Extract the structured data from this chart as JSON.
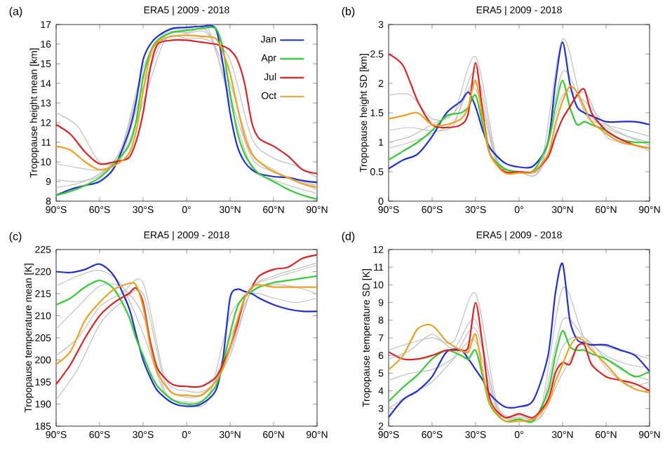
{
  "chart_data": [
    {
      "type": "line",
      "title": "ERA5 | 2009 - 2018",
      "ylabel": "Tropopause height mean [km]",
      "annotations": [
        "(a)"
      ],
      "legend": "top right",
      "x": [
        -90,
        -80,
        -70,
        -60,
        -50,
        -40,
        -35,
        -30,
        -25,
        -20,
        -10,
        0,
        10,
        20,
        25,
        30,
        35,
        40,
        45,
        50,
        60,
        70,
        80,
        90
      ],
      "xlim": [
        -90,
        90
      ],
      "xticks": [
        {
          "value": -90,
          "label": "90°S"
        },
        {
          "value": -60,
          "label": "60°S"
        },
        {
          "value": -30,
          "label": "30°S"
        },
        {
          "value": 0,
          "label": "0°"
        },
        {
          "value": 30,
          "label": "30°N"
        },
        {
          "value": 60,
          "label": "60°N"
        },
        {
          "value": 90,
          "label": "90°N"
        }
      ],
      "ylim": [
        8,
        17
      ],
      "yticks": [
        8,
        9,
        10,
        11,
        12,
        13,
        14,
        15,
        16,
        17
      ],
      "series": [
        {
          "color": "#c0c0c0",
          "x": [
            -90,
            -75,
            -60,
            -45,
            -30,
            -15,
            0,
            15,
            30,
            45,
            60,
            75,
            90
          ],
          "values": [
            12.5,
            11.8,
            10.0,
            10.2,
            13,
            16.2,
            16.3,
            16.2,
            15.2,
            11.2,
            10.2,
            9.8,
            9.2
          ]
        },
        {
          "color": "#c0c0c0",
          "x": [
            -90,
            -75,
            -60,
            -45,
            -30,
            -15,
            0,
            15,
            30,
            45,
            60,
            75,
            90
          ],
          "values": [
            9.9,
            9.7,
            9.6,
            10.3,
            13.8,
            16.4,
            16.55,
            16.5,
            14.0,
            10.5,
            9.6,
            9.0,
            8.6
          ]
        },
        {
          "color": "#c0c0c0",
          "x": [
            -90,
            -75,
            -60,
            -45,
            -30,
            -15,
            0,
            15,
            30,
            45,
            60,
            75,
            90
          ],
          "values": [
            9.1,
            9.0,
            9.3,
            10.7,
            14.8,
            16.6,
            16.75,
            16.8,
            13.0,
            9.7,
            9.1,
            8.7,
            8.4
          ]
        },
        {
          "color": "#c0c0c0",
          "x": [
            -90,
            -75,
            -60,
            -45,
            -30,
            -15,
            0,
            15,
            30,
            45,
            60,
            75,
            90
          ],
          "values": [
            8.7,
            8.9,
            9.4,
            10.6,
            14.5,
            16.5,
            16.6,
            16.6,
            13.3,
            10.2,
            9.5,
            9.1,
            8.8
          ]
        },
        {
          "name": "Jan",
          "color": "#1f2fd0",
          "values": [
            8.3,
            8.6,
            8.8,
            9.0,
            9.7,
            11.5,
            13,
            15.2,
            16.0,
            16.4,
            16.8,
            16.85,
            16.9,
            16.8,
            15.0,
            12.5,
            10.8,
            10.0,
            9.6,
            9.4,
            9.25,
            9.2,
            9.05,
            8.95
          ]
        },
        {
          "name": "Apr",
          "color": "#33cc33",
          "values": [
            8.3,
            8.5,
            8.8,
            9.2,
            9.9,
            10.8,
            12,
            14.3,
            15.6,
            16.2,
            16.6,
            16.7,
            16.8,
            16.8,
            15.8,
            13.5,
            11.5,
            10.4,
            9.8,
            9.4,
            9.0,
            8.6,
            8.3,
            8.1
          ]
        },
        {
          "name": "Jul",
          "color": "#dd2222",
          "values": [
            11.9,
            11.4,
            10.5,
            9.9,
            10.0,
            10.2,
            11.0,
            12.5,
            14.8,
            16.0,
            16.2,
            16.2,
            16.1,
            16.0,
            15.9,
            15.7,
            15.2,
            14.0,
            12.0,
            11.2,
            10.8,
            10.3,
            9.6,
            9.4
          ]
        },
        {
          "name": "Oct",
          "color": "#f0a020",
          "values": [
            10.8,
            10.6,
            10.0,
            9.6,
            9.8,
            10.4,
            11.5,
            13.6,
            15.5,
            16.1,
            16.4,
            16.45,
            16.4,
            16.3,
            15.6,
            14.5,
            12.8,
            11.3,
            10.4,
            10.0,
            9.5,
            9.2,
            8.9,
            8.7
          ]
        }
      ]
    },
    {
      "type": "line",
      "title": "ERA5 | 2009 - 2018",
      "ylabel": "Tropopause height SD [km]",
      "annotations": [
        "(b)"
      ],
      "x": [
        -90,
        -80,
        -70,
        -60,
        -50,
        -40,
        -35,
        -30,
        -25,
        -20,
        -10,
        0,
        10,
        20,
        25,
        30,
        35,
        40,
        45,
        50,
        60,
        70,
        80,
        90
      ],
      "xlim": [
        -90,
        90
      ],
      "xticks": [
        {
          "value": -90,
          "label": "90°S"
        },
        {
          "value": -60,
          "label": "60°S"
        },
        {
          "value": -30,
          "label": "30°S"
        },
        {
          "value": 0,
          "label": "0°"
        },
        {
          "value": 30,
          "label": "30°N"
        },
        {
          "value": 60,
          "label": "60°N"
        },
        {
          "value": 90,
          "label": "90°N"
        }
      ],
      "ylim": [
        0,
        3
      ],
      "yticks": [
        0,
        0.5,
        1,
        1.5,
        2,
        2.5,
        3
      ],
      "series": [
        {
          "color": "#c0c0c0",
          "x": [
            -90,
            -75,
            -60,
            -45,
            -30,
            -15,
            0,
            15,
            30,
            45,
            60,
            75,
            90
          ],
          "values": [
            1.8,
            1.8,
            1.4,
            1.5,
            2.45,
            0.7,
            0.5,
            0.6,
            2.75,
            1.5,
            1.3,
            1.2,
            1.1
          ]
        },
        {
          "color": "#c0c0c0",
          "x": [
            -90,
            -75,
            -60,
            -45,
            -30,
            -15,
            0,
            15,
            30,
            45,
            60,
            75,
            90
          ],
          "values": [
            1.2,
            1.25,
            1.2,
            1.3,
            2.2,
            0.65,
            0.5,
            0.55,
            2.2,
            1.55,
            1.25,
            1.1,
            1.0
          ]
        },
        {
          "color": "#c0c0c0",
          "x": [
            -90,
            -75,
            -60,
            -45,
            -30,
            -15,
            0,
            15,
            30,
            45,
            60,
            75,
            90
          ],
          "values": [
            1.0,
            1.1,
            1.3,
            1.5,
            1.9,
            0.7,
            0.5,
            0.6,
            1.8,
            1.7,
            1.3,
            1.1,
            0.95
          ]
        },
        {
          "color": "#c0c0c0",
          "x": [
            -90,
            -75,
            -60,
            -45,
            -30,
            -15,
            0,
            15,
            30,
            45,
            60,
            75,
            90
          ],
          "values": [
            0.9,
            1.0,
            1.15,
            1.35,
            2.0,
            0.6,
            0.5,
            0.55,
            1.4,
            1.85,
            1.1,
            1.0,
            0.85
          ]
        },
        {
          "color": "#1f2fd0",
          "values": [
            0.55,
            0.7,
            0.8,
            1.1,
            1.5,
            1.7,
            1.85,
            1.6,
            1.2,
            0.9,
            0.65,
            0.58,
            0.6,
            1.0,
            2.0,
            2.7,
            2.0,
            1.6,
            1.5,
            1.45,
            1.35,
            1.35,
            1.35,
            1.3
          ]
        },
        {
          "color": "#33cc33",
          "values": [
            0.7,
            0.85,
            1.0,
            1.2,
            1.45,
            1.5,
            1.6,
            1.8,
            1.3,
            0.8,
            0.55,
            0.5,
            0.52,
            1.0,
            1.6,
            2.05,
            1.6,
            1.3,
            1.35,
            1.3,
            1.2,
            1.05,
            1.0,
            1.0
          ]
        },
        {
          "color": "#dd2222",
          "values": [
            2.5,
            2.3,
            1.7,
            1.3,
            1.25,
            1.3,
            1.5,
            2.35,
            1.5,
            0.8,
            0.5,
            0.5,
            0.5,
            0.75,
            1.1,
            1.4,
            1.6,
            1.8,
            1.9,
            1.5,
            1.2,
            1.05,
            0.95,
            0.9
          ]
        },
        {
          "color": "#f0a020",
          "values": [
            1.4,
            1.45,
            1.5,
            1.3,
            1.3,
            1.4,
            1.6,
            2.05,
            1.4,
            0.8,
            0.48,
            0.48,
            0.5,
            0.8,
            1.3,
            1.7,
            1.95,
            1.85,
            1.6,
            1.35,
            1.15,
            1.0,
            0.95,
            0.9
          ]
        }
      ]
    },
    {
      "type": "line",
      "title": "ERA5 | 2009 - 2018",
      "ylabel": "Tropopause temperature mean [K]",
      "annotations": [
        "(c)"
      ],
      "x": [
        -90,
        -80,
        -70,
        -60,
        -50,
        -40,
        -35,
        -30,
        -25,
        -20,
        -10,
        0,
        10,
        20,
        25,
        30,
        35,
        40,
        45,
        50,
        60,
        70,
        80,
        90
      ],
      "xlim": [
        -90,
        90
      ],
      "xticks": [
        {
          "value": -90,
          "label": "90°S"
        },
        {
          "value": -60,
          "label": "60°S"
        },
        {
          "value": -30,
          "label": "30°S"
        },
        {
          "value": 0,
          "label": "0°"
        },
        {
          "value": 30,
          "label": "30°N"
        },
        {
          "value": 60,
          "label": "60°N"
        },
        {
          "value": 90,
          "label": "90°N"
        }
      ],
      "ylim": [
        185,
        225
      ],
      "yticks": [
        185,
        190,
        195,
        200,
        205,
        210,
        215,
        220,
        225
      ],
      "series": [
        {
          "color": "#c0c0c0",
          "x": [
            -90,
            -75,
            -60,
            -45,
            -30,
            -15,
            0,
            15,
            30,
            45,
            60,
            75,
            90
          ],
          "values": [
            216.7,
            219,
            220.3,
            217,
            206,
            192.5,
            190,
            191,
            210,
            215,
            214,
            213,
            214
          ]
        },
        {
          "color": "#c0c0c0",
          "x": [
            -90,
            -75,
            -60,
            -45,
            -30,
            -15,
            0,
            15,
            30,
            45,
            60,
            75,
            90
          ],
          "values": [
            207,
            212,
            216.7,
            216.5,
            210,
            193,
            190.5,
            192,
            205,
            215.5,
            217,
            216.5,
            215
          ]
        },
        {
          "color": "#c0c0c0",
          "x": [
            -90,
            -75,
            -60,
            -45,
            -30,
            -15,
            0,
            15,
            30,
            45,
            60,
            75,
            90
          ],
          "values": [
            201,
            205,
            212,
            215,
            217.5,
            196,
            193,
            193.5,
            201,
            216,
            219,
            220.5,
            222
          ]
        },
        {
          "color": "#c0c0c0",
          "x": [
            -90,
            -75,
            -60,
            -45,
            -30,
            -15,
            0,
            15,
            30,
            45,
            60,
            75,
            90
          ],
          "values": [
            191,
            198,
            208,
            213,
            215,
            195,
            191.5,
            193,
            202,
            216,
            218.5,
            220,
            221.5
          ]
        },
        {
          "color": "#1f2fd0",
          "values": [
            220,
            219.8,
            220.5,
            221.7,
            219,
            212,
            206,
            200,
            196,
            193,
            190.3,
            189.5,
            190,
            193,
            200,
            214,
            216,
            215.5,
            215,
            214,
            212.5,
            211.5,
            211,
            211
          ]
        },
        {
          "color": "#33cc33",
          "values": [
            212.5,
            214,
            216.5,
            218,
            216,
            210,
            205,
            201,
            197,
            194,
            191,
            190,
            190.5,
            194,
            199,
            206,
            212,
            214.5,
            215.5,
            216.5,
            217.5,
            218,
            218.5,
            219
          ]
        },
        {
          "color": "#dd2222",
          "values": [
            194.5,
            199,
            205,
            210,
            213,
            215,
            216.3,
            213,
            204,
            198,
            194.5,
            194,
            194,
            196,
            199,
            203,
            208,
            214,
            216.5,
            219,
            220.5,
            221,
            223,
            223.8
          ]
        },
        {
          "color": "#f0a020",
          "values": [
            199,
            202,
            209,
            213,
            216,
            217.3,
            217,
            212,
            203,
            197,
            192.5,
            192,
            192,
            195,
            198,
            203,
            209,
            214,
            216.5,
            217,
            216.5,
            216.5,
            216.5,
            216.5
          ]
        }
      ]
    },
    {
      "type": "line",
      "title": "ERA5 | 2009 - 2018",
      "ylabel": "Tropopause temperature SD [K]",
      "annotations": [
        "(d)"
      ],
      "x": [
        -90,
        -80,
        -70,
        -60,
        -50,
        -40,
        -35,
        -30,
        -25,
        -20,
        -10,
        0,
        10,
        20,
        25,
        30,
        35,
        40,
        45,
        50,
        60,
        70,
        80,
        90
      ],
      "xlim": [
        -90,
        90
      ],
      "xticks": [
        {
          "value": -90,
          "label": "90°S"
        },
        {
          "value": -60,
          "label": "60°S"
        },
        {
          "value": -30,
          "label": "30°S"
        },
        {
          "value": 0,
          "label": "0°"
        },
        {
          "value": 30,
          "label": "30°N"
        },
        {
          "value": 60,
          "label": "60°N"
        },
        {
          "value": 90,
          "label": "90°N"
        }
      ],
      "ylim": [
        2,
        12
      ],
      "yticks": [
        2,
        3,
        4,
        5,
        6,
        7,
        8,
        9,
        10,
        11,
        12
      ],
      "series": [
        {
          "color": "#c0c0c0",
          "x": [
            -90,
            -75,
            -60,
            -45,
            -30,
            -15,
            0,
            15,
            30,
            45,
            60,
            75,
            90
          ],
          "values": [
            6.3,
            6.7,
            7.0,
            6.8,
            9.5,
            3.2,
            2.6,
            3.0,
            9.8,
            7.0,
            6.5,
            6.2,
            5.8
          ]
        },
        {
          "color": "#c0c0c0",
          "x": [
            -90,
            -75,
            -60,
            -45,
            -30,
            -15,
            0,
            15,
            30,
            45,
            60,
            75,
            90
          ],
          "values": [
            5.8,
            6.3,
            7.2,
            6.4,
            8.0,
            3.0,
            2.5,
            2.8,
            8.0,
            7.0,
            6.0,
            5.5,
            5.3
          ]
        },
        {
          "color": "#c0c0c0",
          "x": [
            -90,
            -75,
            -60,
            -45,
            -30,
            -15,
            0,
            15,
            30,
            45,
            60,
            75,
            90
          ],
          "values": [
            4.6,
            5.0,
            5.2,
            5.9,
            7.5,
            3.0,
            2.4,
            2.6,
            6.5,
            7.0,
            5.8,
            5.0,
            4.6
          ]
        },
        {
          "color": "#c0c0c0",
          "x": [
            -90,
            -75,
            -60,
            -45,
            -30,
            -15,
            0,
            15,
            30,
            45,
            60,
            75,
            90
          ],
          "values": [
            3.0,
            3.8,
            4.5,
            5.8,
            6.8,
            2.9,
            2.3,
            2.5,
            5.0,
            6.8,
            5.3,
            4.3,
            4.5
          ]
        },
        {
          "color": "#1f2fd0",
          "values": [
            2.5,
            3.5,
            4.0,
            4.8,
            6.2,
            6.3,
            5.8,
            5.2,
            4.6,
            3.8,
            3.1,
            3.1,
            3.5,
            6.0,
            9.5,
            11.2,
            8.0,
            6.9,
            6.7,
            6.6,
            6.6,
            6.3,
            6.0,
            5.1
          ]
        },
        {
          "color": "#33cc33",
          "values": [
            3.4,
            4.2,
            4.9,
            5.8,
            6.3,
            6.0,
            5.8,
            6.3,
            4.8,
            3.2,
            2.3,
            2.4,
            2.3,
            4.0,
            6.0,
            7.4,
            6.5,
            6.3,
            6.3,
            6.1,
            5.8,
            5.3,
            4.8,
            5.1
          ]
        },
        {
          "color": "#dd2222",
          "values": [
            6.2,
            5.8,
            5.8,
            6.0,
            6.3,
            6.3,
            6.5,
            9.0,
            6.5,
            3.5,
            2.5,
            2.7,
            2.5,
            3.5,
            5.0,
            5.6,
            5.5,
            6.5,
            6.6,
            5.5,
            4.8,
            4.6,
            4.4,
            4.0
          ]
        },
        {
          "color": "#f0a020",
          "values": [
            5.2,
            6.0,
            7.5,
            7.7,
            6.8,
            6.3,
            6.2,
            7.2,
            5.0,
            3.3,
            2.3,
            2.3,
            2.4,
            3.3,
            4.5,
            5.5,
            6.5,
            7.0,
            6.8,
            6.3,
            5.5,
            4.6,
            4.1,
            3.9
          ]
        }
      ]
    }
  ]
}
